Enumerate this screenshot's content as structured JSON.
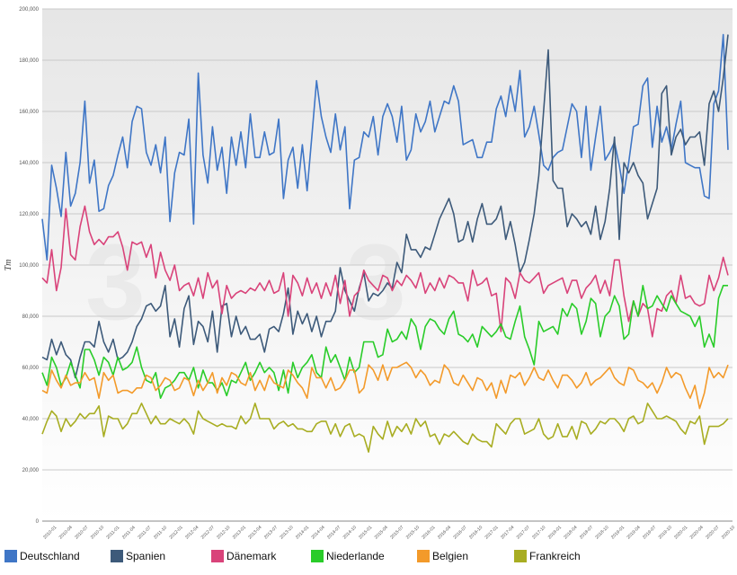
{
  "chart_data": {
    "type": "line",
    "ylabel": "Tm",
    "ylim": [
      0,
      200000
    ],
    "yticks": [
      0,
      20000,
      40000,
      60000,
      80000,
      100000,
      120000,
      140000,
      160000,
      180000,
      200000
    ],
    "ytick_labels": [
      "0",
      "20,000",
      "40,000",
      "60,000",
      "80,000",
      "100,000",
      "120,000",
      "140,000",
      "160,000",
      "180,000",
      "200,000"
    ],
    "grid": true,
    "legend_position": "bottom",
    "xtick_labels": [
      "2010-01",
      "2010-04",
      "2010-07",
      "2010-10",
      "2011-01",
      "2011-04",
      "2011-07",
      "2011-10",
      "2012-01",
      "2012-04",
      "2012-07",
      "2012-10",
      "2013-01",
      "2013-04",
      "2013-07",
      "2013-10",
      "2014-01",
      "2014-04",
      "2014-07",
      "2014-10",
      "2015-01",
      "2015-04",
      "2015-07",
      "2015-10",
      "2016-01",
      "2016-04",
      "2016-07",
      "2016-10",
      "2017-01",
      "2017-04",
      "2017-07",
      "2017-10",
      "2018-01",
      "2018-04",
      "2018-07",
      "2018-10",
      "2019-01",
      "2019-04",
      "2019-07",
      "2019-10",
      "2020-01",
      "2020-04",
      "2020-07",
      "2020-10"
    ],
    "series": [
      {
        "name": "Deutschland",
        "color": "#3f76c6",
        "values": [
          118000,
          102000,
          139000,
          130000,
          119000,
          144000,
          123000,
          128000,
          140000,
          164000,
          132000,
          141000,
          121000,
          122000,
          131000,
          135000,
          143000,
          150000,
          138000,
          156000,
          162000,
          161000,
          144000,
          139000,
          147000,
          136000,
          150000,
          117000,
          136000,
          144000,
          143000,
          157000,
          116000,
          175000,
          143000,
          132000,
          154000,
          137000,
          146000,
          128000,
          150000,
          139000,
          152000,
          138000,
          159000,
          142000,
          142000,
          152000,
          143000,
          144000,
          157000,
          126000,
          141000,
          146000,
          130000,
          147000,
          129000,
          150000,
          172000,
          158000,
          150000,
          144000,
          159000,
          145000,
          154000,
          122000,
          141000,
          142000,
          152000,
          150000,
          158000,
          143000,
          158000,
          163000,
          158000,
          148000,
          162000,
          141000,
          145000,
          159000,
          152000,
          156000,
          164000,
          152000,
          158000,
          164000,
          163000,
          170000,
          164000,
          147000,
          148000,
          149000,
          142000,
          142000,
          148000,
          148000,
          161000,
          166000,
          158000,
          170000,
          160000,
          176000,
          150000,
          154000,
          162000,
          151000,
          139000,
          137000,
          142000,
          144000,
          145000,
          154000,
          163000,
          160000,
          142000,
          162000,
          137000,
          150000,
          162000,
          141000,
          144000,
          148000,
          139000,
          128000,
          140000,
          154000,
          155000,
          170000,
          173000,
          146000,
          162000,
          148000,
          154000,
          145000,
          155000,
          164000,
          140000,
          139000,
          138000,
          138000,
          127000,
          126000,
          163000,
          168000,
          190000,
          145000
        ]
      },
      {
        "name": "Spanien",
        "color": "#3d5a7a",
        "values": [
          64000,
          63000,
          71000,
          65000,
          70000,
          65000,
          63000,
          56000,
          64000,
          70000,
          70000,
          68000,
          78000,
          70000,
          66000,
          71000,
          63000,
          64000,
          66000,
          70000,
          76000,
          79000,
          84000,
          85000,
          82000,
          84000,
          92000,
          72000,
          79000,
          68000,
          83000,
          88000,
          69000,
          78000,
          76000,
          70000,
          82000,
          66000,
          84000,
          85000,
          72000,
          80000,
          73000,
          76000,
          71000,
          71000,
          73000,
          66000,
          75000,
          76000,
          74000,
          81000,
          91000,
          73000,
          82000,
          77000,
          81000,
          74000,
          80000,
          72000,
          78000,
          78000,
          82000,
          99000,
          90000,
          86000,
          82000,
          91000,
          97000,
          86000,
          89000,
          88000,
          90000,
          93000,
          91000,
          101000,
          97000,
          112000,
          106000,
          106000,
          103000,
          107000,
          106000,
          112000,
          118000,
          122000,
          126000,
          120000,
          109000,
          110000,
          117000,
          109000,
          118000,
          124000,
          116000,
          116000,
          118000,
          123000,
          110000,
          117000,
          108000,
          97000,
          101000,
          110000,
          120000,
          135000,
          160000,
          184000,
          133000,
          130000,
          130000,
          115000,
          120000,
          118000,
          115000,
          117000,
          112000,
          123000,
          110000,
          117000,
          130000,
          150000,
          110000,
          140000,
          136000,
          140000,
          135000,
          132000,
          118000,
          124000,
          130000,
          167000,
          170000,
          143000,
          150000,
          153000,
          147000,
          150000,
          150000,
          152000,
          139000,
          163000,
          168000,
          160000,
          173000,
          190000
        ]
      },
      {
        "name": "Dänemark",
        "color": "#d9437a",
        "values": [
          95000,
          93000,
          106000,
          90000,
          99000,
          122000,
          104000,
          102000,
          115000,
          123000,
          113000,
          108000,
          110000,
          108000,
          111000,
          111000,
          113000,
          107000,
          98000,
          109000,
          108000,
          109000,
          103000,
          108000,
          95000,
          105000,
          98000,
          94000,
          100000,
          90000,
          92000,
          93000,
          88000,
          95000,
          87000,
          97000,
          91000,
          94000,
          81000,
          92000,
          87000,
          89000,
          90000,
          89000,
          91000,
          90000,
          93000,
          90000,
          94000,
          89000,
          90000,
          97000,
          80000,
          96000,
          93000,
          88000,
          95000,
          89000,
          93000,
          87000,
          93000,
          88000,
          96000,
          85000,
          94000,
          80000,
          88000,
          90000,
          98000,
          94000,
          92000,
          90000,
          96000,
          95000,
          90000,
          94000,
          92000,
          96000,
          94000,
          91000,
          97000,
          89000,
          93000,
          90000,
          95000,
          91000,
          96000,
          95000,
          93000,
          93000,
          86000,
          98000,
          92000,
          93000,
          95000,
          88000,
          89000,
          74000,
          95000,
          93000,
          87000,
          97000,
          94000,
          93000,
          95000,
          97000,
          89000,
          92000,
          93000,
          94000,
          95000,
          89000,
          94000,
          94000,
          87000,
          91000,
          93000,
          96000,
          89000,
          94000,
          88000,
          102000,
          102000,
          88000,
          78000,
          86000,
          80000,
          85000,
          83000,
          72000,
          83000,
          82000,
          88000,
          90000,
          85000,
          96000,
          87000,
          88000,
          85000,
          84000,
          85000,
          96000,
          90000,
          95000,
          103000,
          96000
        ]
      },
      {
        "name": "Niederlande",
        "color": "#29cc29",
        "values": [
          58000,
          53000,
          64000,
          60000,
          53000,
          56000,
          62000,
          57000,
          52000,
          67000,
          67000,
          63000,
          57000,
          64000,
          62000,
          57000,
          64000,
          59000,
          60000,
          62000,
          68000,
          60000,
          55000,
          54000,
          58000,
          48000,
          52000,
          53000,
          55000,
          58000,
          58000,
          55000,
          60000,
          52000,
          59000,
          54000,
          54000,
          51000,
          54000,
          49000,
          55000,
          54000,
          58000,
          62000,
          55000,
          58000,
          62000,
          58000,
          60000,
          58000,
          51000,
          59000,
          50000,
          62000,
          56000,
          60000,
          62000,
          65000,
          58000,
          56000,
          68000,
          62000,
          65000,
          60000,
          55000,
          64000,
          58000,
          60000,
          70000,
          70000,
          70000,
          64000,
          65000,
          75000,
          70000,
          71000,
          74000,
          71000,
          79000,
          76000,
          67000,
          76000,
          79000,
          78000,
          75000,
          73000,
          79000,
          82000,
          73000,
          72000,
          70000,
          73000,
          68000,
          76000,
          74000,
          72000,
          74000,
          77000,
          72000,
          71000,
          78000,
          84000,
          72000,
          67000,
          61000,
          78000,
          74000,
          75000,
          76000,
          73000,
          83000,
          80000,
          85000,
          83000,
          73000,
          78000,
          87000,
          85000,
          72000,
          80000,
          82000,
          88000,
          84000,
          71000,
          73000,
          86000,
          80000,
          92000,
          83000,
          84000,
          88000,
          85000,
          82000,
          88000,
          85000,
          82000,
          81000,
          80000,
          76000,
          80000,
          68000,
          73000,
          68000,
          87000,
          92000,
          92000
        ]
      },
      {
        "name": "Belgien",
        "color": "#f39a2a",
        "values": [
          51000,
          50000,
          59000,
          55000,
          52000,
          57000,
          53000,
          54000,
          54000,
          58000,
          55000,
          56000,
          48000,
          58000,
          55000,
          57000,
          50000,
          51000,
          51000,
          50000,
          52000,
          52000,
          57000,
          56000,
          51000,
          53000,
          56000,
          55000,
          51000,
          52000,
          56000,
          55000,
          49000,
          55000,
          51000,
          54000,
          58000,
          50000,
          56000,
          53000,
          58000,
          57000,
          54000,
          53000,
          58000,
          51000,
          55000,
          51000,
          57000,
          54000,
          53000,
          52000,
          59000,
          57000,
          54000,
          52000,
          48000,
          60000,
          56000,
          56000,
          52000,
          56000,
          51000,
          52000,
          55000,
          59000,
          59000,
          50000,
          52000,
          61000,
          59000,
          55000,
          61000,
          55000,
          60000,
          60000,
          61000,
          62000,
          60000,
          56000,
          59000,
          57000,
          53000,
          55000,
          54000,
          61000,
          59000,
          54000,
          53000,
          57000,
          54000,
          51000,
          56000,
          55000,
          51000,
          54000,
          48000,
          55000,
          50000,
          57000,
          56000,
          58000,
          53000,
          56000,
          60000,
          56000,
          55000,
          59000,
          55000,
          52000,
          57000,
          57000,
          55000,
          52000,
          54000,
          58000,
          53000,
          55000,
          56000,
          58000,
          60000,
          56000,
          54000,
          53000,
          60000,
          59000,
          55000,
          54000,
          52000,
          54000,
          50000,
          54000,
          60000,
          56000,
          58000,
          57000,
          52000,
          48000,
          53000,
          44000,
          50000,
          60000,
          56000,
          58000,
          56000,
          61000
        ]
      },
      {
        "name": "Frankreich",
        "color": "#a8ad22",
        "values": [
          34000,
          39000,
          43000,
          41000,
          35000,
          40000,
          37000,
          39000,
          42000,
          40000,
          42000,
          42000,
          45000,
          33000,
          41000,
          40000,
          40000,
          36000,
          38000,
          42000,
          42000,
          46000,
          42000,
          38000,
          41000,
          38000,
          38000,
          40000,
          39000,
          38000,
          40000,
          38000,
          34000,
          43000,
          40000,
          39000,
          38000,
          37000,
          38000,
          37000,
          37000,
          36000,
          41000,
          38000,
          40000,
          46000,
          40000,
          40000,
          40000,
          36000,
          38000,
          39000,
          37000,
          38000,
          36000,
          36000,
          35000,
          35000,
          38000,
          39000,
          39000,
          34000,
          38000,
          33000,
          37000,
          38000,
          33000,
          34000,
          33000,
          27000,
          37000,
          34000,
          32000,
          39000,
          33000,
          37000,
          35000,
          38000,
          34000,
          40000,
          37000,
          39000,
          33000,
          34000,
          30000,
          34000,
          33000,
          35000,
          33000,
          31000,
          30000,
          34000,
          32000,
          31000,
          31000,
          29000,
          38000,
          36000,
          34000,
          38000,
          40000,
          40000,
          34000,
          35000,
          36000,
          40000,
          34000,
          32000,
          33000,
          38000,
          33000,
          33000,
          37000,
          32000,
          39000,
          38000,
          34000,
          36000,
          39000,
          38000,
          40000,
          40000,
          38000,
          35000,
          40000,
          41000,
          38000,
          39000,
          46000,
          43000,
          40000,
          40000,
          41000,
          40000,
          39000,
          36000,
          34000,
          39000,
          38000,
          41000,
          30000,
          37000,
          37000,
          37000,
          38000,
          40000
        ]
      }
    ]
  }
}
